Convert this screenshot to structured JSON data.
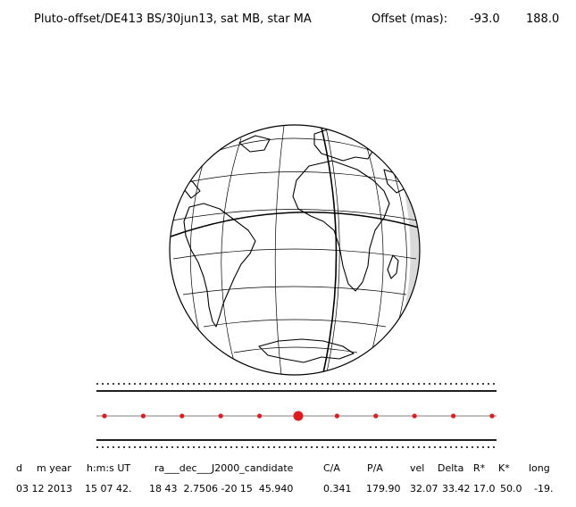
{
  "header": {
    "title": "Pluto-offset/DE413 BS/30jun13, sat MB, star MA",
    "offset_label": "Offset (mas):",
    "offset_x": "-93.0",
    "offset_y": "188.0"
  },
  "table": {
    "headers": [
      "d",
      "m year",
      "h:m:s UT",
      "ra___dec___J2000_candidate",
      "C/A",
      "P/A",
      "vel",
      "Delta",
      "R*",
      "K*",
      "long"
    ],
    "values": [
      "03 12 2013",
      "15 07 42.",
      "18 43  2.7506 -20 15  45.940",
      "0.341",
      "179.90",
      "32.07",
      "33.42",
      "17.0",
      "50.0",
      "-19."
    ]
  },
  "colors": {
    "ink": "#000000",
    "track_dot": "#e31a1c",
    "shadow": "#d9d9d9"
  },
  "track": {
    "dot_count": 11,
    "closest_approach_index": 5
  }
}
